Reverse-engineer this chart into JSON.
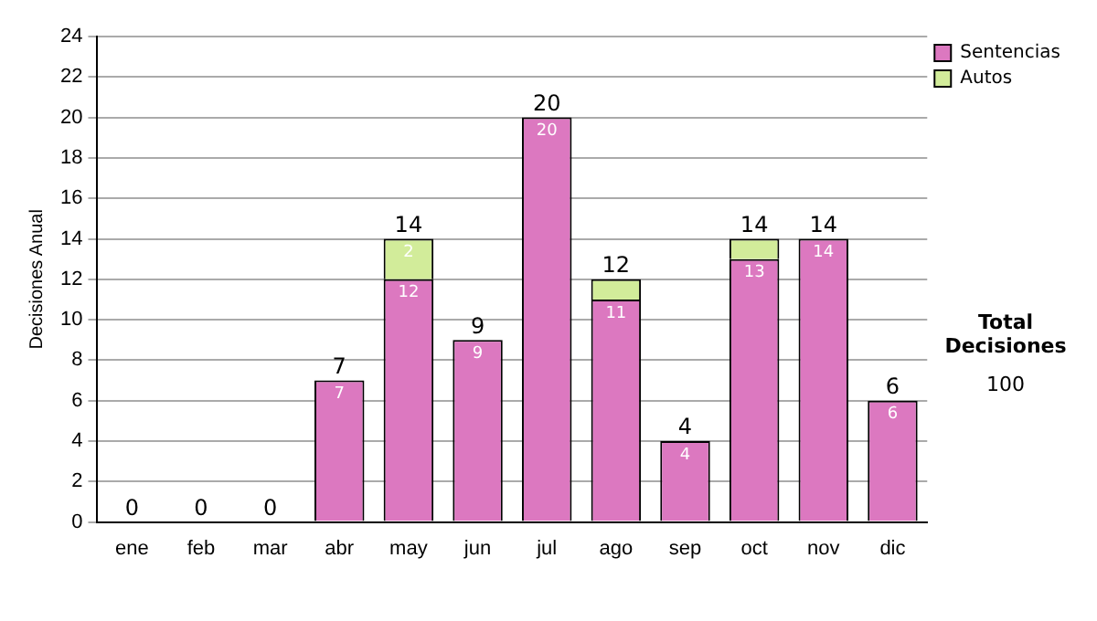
{
  "chart_data": {
    "type": "bar",
    "stacked": true,
    "ylabel": "Decisiones Anual",
    "categories": [
      "ene",
      "feb",
      "mar",
      "abr",
      "may",
      "jun",
      "jul",
      "ago",
      "sep",
      "oct",
      "nov",
      "dic"
    ],
    "series": [
      {
        "name": "Sentencias",
        "color": "#dc78c0",
        "values": [
          0,
          0,
          0,
          7,
          12,
          9,
          20,
          11,
          4,
          13,
          14,
          6
        ],
        "value_labels": [
          null,
          null,
          null,
          "7",
          "12",
          "9",
          "20",
          "11",
          "4",
          "13",
          "14",
          "6"
        ]
      },
      {
        "name": "Autos",
        "color": "#d2ec9a",
        "values": [
          0,
          0,
          0,
          0,
          2,
          0,
          0,
          1,
          0,
          1,
          0,
          0
        ],
        "value_labels": [
          null,
          null,
          null,
          null,
          "2",
          null,
          null,
          null,
          null,
          null,
          null,
          null
        ]
      }
    ],
    "totals": [
      "0",
      "0",
      "0",
      "7",
      "14",
      "9",
      "20",
      "12",
      "4",
      "14",
      "14",
      "6"
    ],
    "ylim": [
      0,
      24
    ],
    "yticks": [
      0,
      2,
      4,
      6,
      8,
      10,
      12,
      14,
      16,
      18,
      20,
      22,
      24
    ],
    "grid": "y",
    "legend": "right",
    "annotations": [
      "Total Decisiones",
      "100"
    ]
  }
}
